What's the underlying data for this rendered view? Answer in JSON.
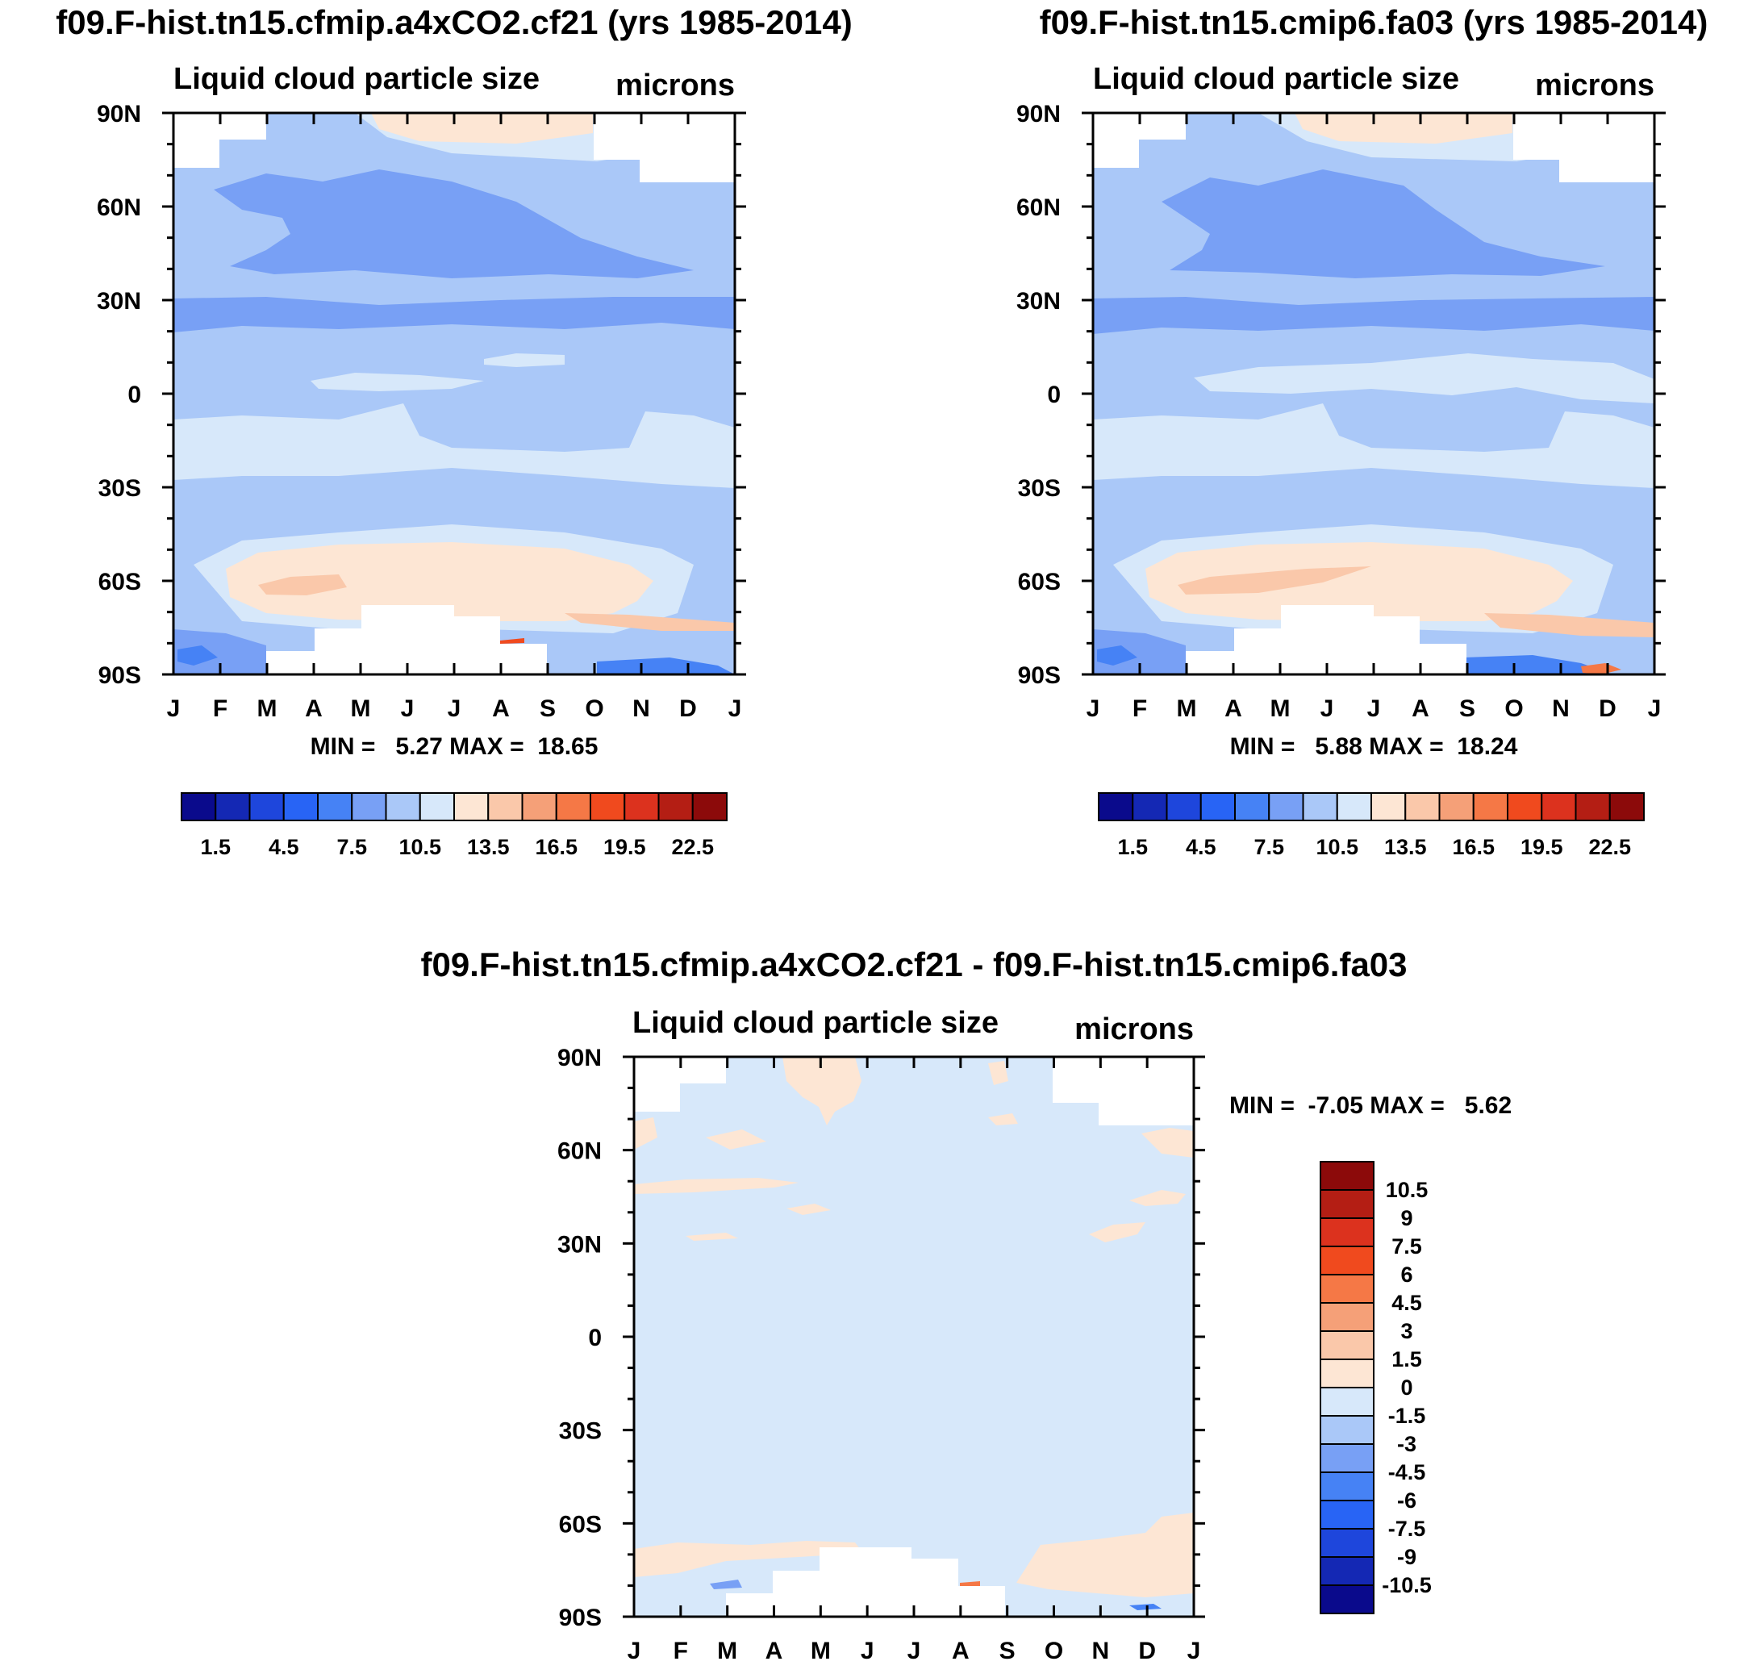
{
  "figure": {
    "units": "microns",
    "panels": [
      {
        "title": "f09.F-hist.tn15.cfmip.a4xCO2.cf21 (yrs 1985-2014)",
        "variable": "Liquid cloud particle size",
        "units": "microns",
        "stats": "MIN =   5.27 MAX =  18.65"
      },
      {
        "title": "f09.F-hist.tn15.cmip6.fa03 (yrs 1985-2014)",
        "variable": "Liquid cloud particle size",
        "units": "microns",
        "stats": "MIN =   5.88 MAX =  18.24"
      },
      {
        "title": "f09.F-hist.tn15.cfmip.a4xCO2.cf21 - f09.F-hist.tn15.cmip6.fa03",
        "variable": "Liquid cloud particle size",
        "units": "microns",
        "stats": "MIN =  -7.05 MAX =   5.62"
      }
    ]
  },
  "chart_data": [
    {
      "type": "heatmap",
      "title": "f09.F-hist.tn15.cfmip.a4xCO2.cf21 (yrs 1985-2014)",
      "subtitle_left": "Liquid cloud particle size",
      "subtitle_right": "microns",
      "x_ticks": [
        "J",
        "F",
        "M",
        "A",
        "M",
        "J",
        "J",
        "A",
        "S",
        "O",
        "N",
        "D",
        "J"
      ],
      "y_ticks": [
        "90N",
        "60N",
        "30N",
        "0",
        "30S",
        "60S",
        "90S"
      ],
      "min": 5.27,
      "max": 18.65,
      "colorbar": {
        "labels": [
          "1.5",
          "4.5",
          "7.5",
          "10.5",
          "13.5",
          "16.5",
          "19.5",
          "22.5"
        ],
        "colors": [
          "#0a0a8c",
          "#1428b4",
          "#1e46dc",
          "#2864f5",
          "#4682f5",
          "#78a0f5",
          "#aac8f8",
          "#d7e8fa",
          "#fde6d4",
          "#fac8aa",
          "#f5a078",
          "#f57846",
          "#f04a1e",
          "#dc321e",
          "#b41e14",
          "#8c0a0a"
        ]
      }
    },
    {
      "type": "heatmap",
      "title": "f09.F-hist.tn15.cmip6.fa03 (yrs 1985-2014)",
      "subtitle_left": "Liquid cloud particle size",
      "subtitle_right": "microns",
      "x_ticks": [
        "J",
        "F",
        "M",
        "A",
        "M",
        "J",
        "J",
        "A",
        "S",
        "O",
        "N",
        "D",
        "J"
      ],
      "y_ticks": [
        "90N",
        "60N",
        "30N",
        "0",
        "30S",
        "60S",
        "90S"
      ],
      "min": 5.88,
      "max": 18.24,
      "colorbar": {
        "labels": [
          "1.5",
          "4.5",
          "7.5",
          "10.5",
          "13.5",
          "16.5",
          "19.5",
          "22.5"
        ],
        "colors": [
          "#0a0a8c",
          "#1428b4",
          "#1e46dc",
          "#2864f5",
          "#4682f5",
          "#78a0f5",
          "#aac8f8",
          "#d7e8fa",
          "#fde6d4",
          "#fac8aa",
          "#f5a078",
          "#f57846",
          "#f04a1e",
          "#dc321e",
          "#b41e14",
          "#8c0a0a"
        ]
      }
    },
    {
      "type": "heatmap",
      "title": "f09.F-hist.tn15.cfmip.a4xCO2.cf21 - f09.F-hist.tn15.cmip6.fa03",
      "subtitle_left": "Liquid cloud particle size",
      "subtitle_right": "microns",
      "x_ticks": [
        "J",
        "F",
        "M",
        "A",
        "M",
        "J",
        "J",
        "A",
        "S",
        "O",
        "N",
        "D",
        "J"
      ],
      "y_ticks": [
        "90N",
        "60N",
        "30N",
        "0",
        "30S",
        "60S",
        "90S"
      ],
      "min": -7.05,
      "max": 5.62,
      "colorbar": {
        "labels": [
          "10.5",
          "9",
          "7.5",
          "6",
          "4.5",
          "3",
          "1.5",
          "0",
          "-1.5",
          "-3",
          "-4.5",
          "-6",
          "-7.5",
          "-9",
          "-10.5"
        ],
        "colors": [
          "#8c0a0a",
          "#b41e14",
          "#dc321e",
          "#f04a1e",
          "#f57846",
          "#f5a078",
          "#fac8aa",
          "#fde6d4",
          "#d7e8fa",
          "#aac8f8",
          "#78a0f5",
          "#4682f5",
          "#2864f5",
          "#1e46dc",
          "#1428b4",
          "#0a0a8c"
        ]
      }
    }
  ]
}
